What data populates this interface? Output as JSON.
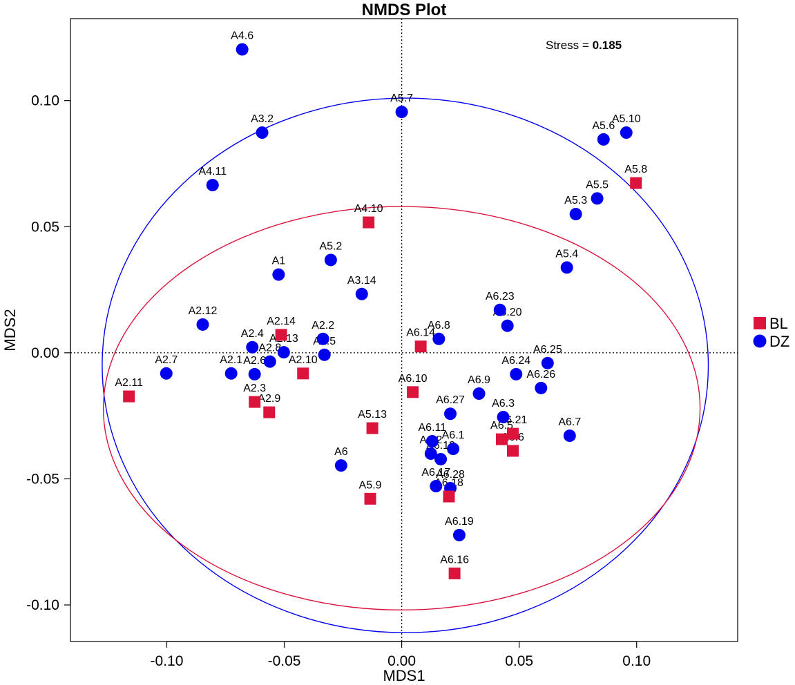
{
  "chart_data": {
    "type": "scatter",
    "title": "NMDS Plot",
    "xlabel": "MDS1",
    "ylabel": "MDS2",
    "xlim": [
      -0.141,
      0.143
    ],
    "ylim": [
      -0.1145,
      0.1325
    ],
    "xticks": [
      -0.1,
      -0.05,
      0.0,
      0.05,
      0.1
    ],
    "xtick_labels": [
      "-0.10",
      "-0.05",
      "0.00",
      "0.05",
      "0.10"
    ],
    "yticks": [
      -0.1,
      -0.05,
      0.0,
      0.05,
      0.1
    ],
    "ytick_labels": [
      "-0.10",
      "-0.05",
      "0.00",
      "0.05",
      "0.10"
    ],
    "stress_label": "Stress = ",
    "stress_value": "0.185",
    "reference_lines": {
      "x": 0,
      "y": 0
    },
    "groups": [
      {
        "name": "BL",
        "color": "#dc143c",
        "marker": "square"
      },
      {
        "name": "DZ",
        "color": "#0000ee",
        "marker": "circle"
      }
    ],
    "ellipses": [
      {
        "group": "DZ",
        "color": "#0000ee",
        "cx": 0.0015,
        "cy": -0.005,
        "rx": 0.129,
        "ry": 0.106
      },
      {
        "group": "BL",
        "color": "#dc143c",
        "cx": 0.0,
        "cy": -0.022,
        "rx": 0.127,
        "ry": 0.08
      }
    ],
    "points": [
      {
        "label": "A4.6",
        "group": "DZ",
        "x": -0.0679,
        "y": 0.1203
      },
      {
        "label": "A5.7",
        "group": "DZ",
        "x": 0.0,
        "y": 0.0955
      },
      {
        "label": "A3.2",
        "group": "DZ",
        "x": -0.0594,
        "y": 0.0873
      },
      {
        "label": "A5.10",
        "group": "DZ",
        "x": 0.0956,
        "y": 0.0873
      },
      {
        "label": "A5.6",
        "group": "DZ",
        "x": 0.0859,
        "y": 0.0846
      },
      {
        "label": "A4.11",
        "group": "DZ",
        "x": -0.0805,
        "y": 0.0665
      },
      {
        "label": "A5.8",
        "group": "BL",
        "x": 0.0997,
        "y": 0.0673
      },
      {
        "label": "A5.5",
        "group": "DZ",
        "x": 0.0832,
        "y": 0.0612
      },
      {
        "label": "A5.3",
        "group": "DZ",
        "x": 0.0741,
        "y": 0.055
      },
      {
        "label": "A4.10",
        "group": "BL",
        "x": -0.0141,
        "y": 0.0517
      },
      {
        "label": "A5.2",
        "group": "DZ",
        "x": -0.0302,
        "y": 0.0368
      },
      {
        "label": "A5.4",
        "group": "DZ",
        "x": 0.0703,
        "y": 0.0338
      },
      {
        "label": "A1",
        "group": "DZ",
        "x": -0.0524,
        "y": 0.031
      },
      {
        "label": "A3.14",
        "group": "DZ",
        "x": -0.017,
        "y": 0.0233
      },
      {
        "label": "A6.23",
        "group": "DZ",
        "x": 0.0418,
        "y": 0.017
      },
      {
        "label": "A6.20",
        "group": "DZ",
        "x": 0.045,
        "y": 0.0107
      },
      {
        "label": "A2.12",
        "group": "DZ",
        "x": -0.0847,
        "y": 0.0112
      },
      {
        "label": "A2.14",
        "group": "BL",
        "x": -0.0513,
        "y": 0.0071
      },
      {
        "label": "A2.2",
        "group": "DZ",
        "x": -0.0335,
        "y": 0.0055
      },
      {
        "label": "A6.8",
        "group": "DZ",
        "x": 0.0158,
        "y": 0.0055
      },
      {
        "label": "A6.14",
        "group": "BL",
        "x": 0.0081,
        "y": 0.0025
      },
      {
        "label": "A2.4",
        "group": "DZ",
        "x": -0.0636,
        "y": 0.0022
      },
      {
        "label": "A2.13",
        "group": "DZ",
        "x": -0.0502,
        "y": 0.0002
      },
      {
        "label": "A2.5",
        "group": "DZ",
        "x": -0.0329,
        "y": -0.0008
      },
      {
        "label": "A6.25",
        "group": "DZ",
        "x": 0.0621,
        "y": -0.0041
      },
      {
        "label": "A2.8",
        "group": "DZ",
        "x": -0.0561,
        "y": -0.0035
      },
      {
        "label": "A2.10",
        "group": "BL",
        "x": -0.042,
        "y": -0.0082
      },
      {
        "label": "A2.7",
        "group": "DZ",
        "x": -0.1002,
        "y": -0.0082
      },
      {
        "label": "A2.1",
        "group": "DZ",
        "x": -0.0726,
        "y": -0.0082
      },
      {
        "label": "A2.6",
        "group": "DZ",
        "x": -0.0626,
        "y": -0.0085
      },
      {
        "label": "A6.24",
        "group": "DZ",
        "x": 0.0487,
        "y": -0.0085
      },
      {
        "label": "A6.26",
        "group": "DZ",
        "x": 0.0593,
        "y": -0.014
      },
      {
        "label": "A6.10",
        "group": "BL",
        "x": 0.0047,
        "y": -0.0156
      },
      {
        "label": "A6.9",
        "group": "DZ",
        "x": 0.0329,
        "y": -0.0162
      },
      {
        "label": "A2.11",
        "group": "BL",
        "x": -0.1161,
        "y": -0.0173
      },
      {
        "label": "A2.3",
        "group": "BL",
        "x": -0.0626,
        "y": -0.0195
      },
      {
        "label": "A2.9",
        "group": "BL",
        "x": -0.0564,
        "y": -0.0236
      },
      {
        "label": "A6.27",
        "group": "DZ",
        "x": 0.0207,
        "y": -0.0242
      },
      {
        "label": "A6.3",
        "group": "DZ",
        "x": 0.0432,
        "y": -0.0255
      },
      {
        "label": "A5.13",
        "group": "BL",
        "x": -0.0125,
        "y": -0.0299
      },
      {
        "label": "A6.21",
        "group": "BL",
        "x": 0.0473,
        "y": -0.0321
      },
      {
        "label": "A6.5",
        "group": "BL",
        "x": 0.0426,
        "y": -0.0343
      },
      {
        "label": "A6.7",
        "group": "DZ",
        "x": 0.0715,
        "y": -0.0329
      },
      {
        "label": "A6.11",
        "group": "DZ",
        "x": 0.013,
        "y": -0.0351
      },
      {
        "label": "A6.1",
        "group": "DZ",
        "x": 0.0219,
        "y": -0.0381
      },
      {
        "label": "A6.6",
        "group": "BL",
        "x": 0.0473,
        "y": -0.0389
      },
      {
        "label": "A6.2",
        "group": "DZ",
        "x": 0.0124,
        "y": -0.04
      },
      {
        "label": "A6.12",
        "group": "DZ",
        "x": 0.0166,
        "y": -0.0422
      },
      {
        "label": "A6",
        "group": "DZ",
        "x": -0.0258,
        "y": -0.0447
      },
      {
        "label": "A6.17",
        "group": "DZ",
        "x": 0.0146,
        "y": -0.0529
      },
      {
        "label": "A6.28",
        "group": "DZ",
        "x": 0.0207,
        "y": -0.0537
      },
      {
        "label": "A6.18",
        "group": "BL",
        "x": 0.0201,
        "y": -0.057
      },
      {
        "label": "A5.9",
        "group": "BL",
        "x": -0.0134,
        "y": -0.0579
      },
      {
        "label": "A6.19",
        "group": "DZ",
        "x": 0.0245,
        "y": -0.0723
      },
      {
        "label": "A6.16",
        "group": "BL",
        "x": 0.0225,
        "y": -0.0875
      }
    ]
  }
}
